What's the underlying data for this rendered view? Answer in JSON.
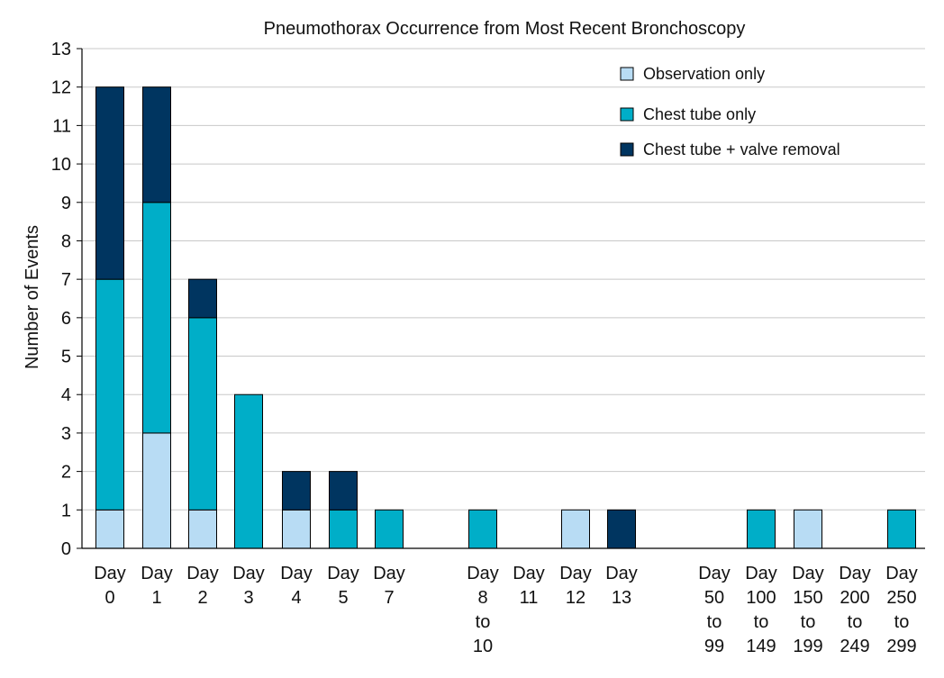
{
  "chart_data": {
    "type": "bar",
    "stacked": true,
    "title": "Pneumothorax Occurrence from Most Recent Bronchoscopy",
    "xlabel": "",
    "ylabel": "Number of Events",
    "ylim": [
      0,
      13
    ],
    "yticks": [
      0,
      1,
      2,
      3,
      4,
      5,
      6,
      7,
      8,
      9,
      10,
      11,
      12,
      13
    ],
    "grid": true,
    "legend_position": "top-right",
    "categories": [
      [
        "Day",
        "0"
      ],
      [
        "Day",
        "1"
      ],
      [
        "Day",
        "2"
      ],
      [
        "Day",
        "3"
      ],
      [
        "Day",
        "4"
      ],
      [
        "Day",
        "5"
      ],
      [
        "Day",
        "7"
      ],
      [
        "Day",
        "8",
        "to",
        "10"
      ],
      [
        "Day",
        "11"
      ],
      [
        "Day",
        "12"
      ],
      [
        "Day",
        "13"
      ],
      [
        "Day",
        "50",
        "to",
        "99"
      ],
      [
        "Day",
        "100",
        "to",
        "149"
      ],
      [
        "Day",
        "150",
        "to",
        "199"
      ],
      [
        "Day",
        "200",
        "to",
        "249"
      ],
      [
        "Day",
        "250",
        "to",
        "299"
      ]
    ],
    "series": [
      {
        "name": "Observation only",
        "color": "#b8dcf4",
        "values": [
          1,
          3,
          1,
          0,
          1,
          0,
          0,
          0,
          0,
          1,
          0,
          0,
          0,
          1,
          0,
          0
        ]
      },
      {
        "name": "Chest tube only",
        "color": "#00aec8",
        "values": [
          6,
          6,
          5,
          4,
          0,
          1,
          1,
          1,
          0,
          0,
          0,
          0,
          1,
          0,
          0,
          1
        ]
      },
      {
        "name": "Chest tube + valve removal",
        "color": "#003560",
        "values": [
          5,
          3,
          1,
          0,
          1,
          1,
          0,
          0,
          0,
          0,
          1,
          0,
          0,
          0,
          0,
          0
        ]
      }
    ]
  }
}
